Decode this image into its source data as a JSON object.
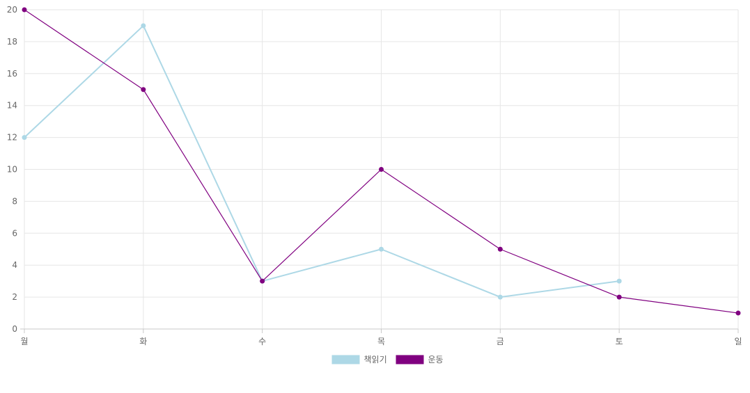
{
  "chart_data": {
    "type": "line",
    "categories": [
      "월",
      "화",
      "수",
      "목",
      "금",
      "토",
      "일"
    ],
    "series": [
      {
        "name": "책읽기",
        "values": [
          12,
          19,
          3,
          5,
          2,
          3,
          null
        ],
        "color": "#add8e6"
      },
      {
        "name": "운동",
        "values": [
          20,
          15,
          3,
          10,
          5,
          2,
          1
        ],
        "color": "#800080"
      }
    ],
    "ylim": [
      0,
      20
    ],
    "yticks": [
      0,
      2,
      4,
      6,
      8,
      10,
      12,
      14,
      16,
      18,
      20
    ],
    "grid": true,
    "legend_position": "bottom"
  }
}
